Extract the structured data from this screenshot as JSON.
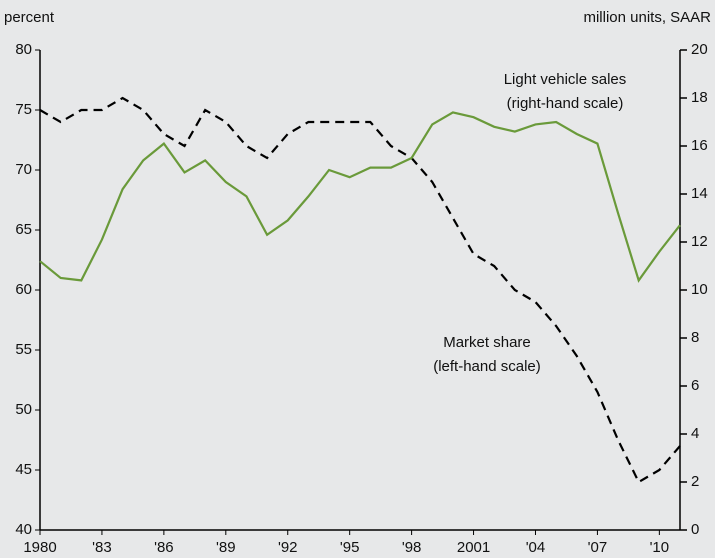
{
  "chart_data": {
    "type": "line",
    "y_label": "percent",
    "y2_label": "million units, SAAR",
    "x": [
      1980,
      1981,
      1982,
      1983,
      1984,
      1985,
      1986,
      1987,
      1988,
      1989,
      1990,
      1991,
      1992,
      1993,
      1994,
      1995,
      1996,
      1997,
      1998,
      1999,
      2000,
      2001,
      2002,
      2003,
      2004,
      2005,
      2006,
      2007,
      2008,
      2009,
      2010,
      2011
    ],
    "series": [
      {
        "name": "Market share",
        "color": "#000000",
        "dashed": true,
        "values": [
          75,
          74,
          75,
          75,
          76,
          75,
          73,
          72,
          75,
          74,
          72,
          71,
          73,
          74,
          74,
          74,
          74,
          72,
          71,
          69,
          66,
          63,
          62,
          60,
          59,
          57,
          54.5,
          51.5,
          47.5,
          44,
          45,
          47
        ]
      },
      {
        "name": "Light vehicle sales",
        "color": "#6a9a3a",
        "axis": "y2",
        "values": [
          11.2,
          10.5,
          10.4,
          12.1,
          14.2,
          15.4,
          16.1,
          14.9,
          15.4,
          14.5,
          13.9,
          12.3,
          12.9,
          13.9,
          15.0,
          14.7,
          15.1,
          15.1,
          15.5,
          16.9,
          17.4,
          17.2,
          16.8,
          16.6,
          16.9,
          17.0,
          16.5,
          16.1,
          13.2,
          10.4,
          11.6,
          12.7
        ]
      }
    ],
    "annotations": [
      {
        "series": 1,
        "lines": [
          "Light vehicle sales",
          "(right-hand scale)"
        ]
      },
      {
        "series": 0,
        "lines": [
          "Market share",
          "(left-hand scale)"
        ]
      }
    ],
    "xlim": [
      1980,
      2011
    ],
    "xticks": [
      {
        "value": 1980,
        "label": "1980"
      },
      {
        "value": 1983,
        "label": "'83"
      },
      {
        "value": 1986,
        "label": "'86"
      },
      {
        "value": 1989,
        "label": "'89"
      },
      {
        "value": 1992,
        "label": "'92"
      },
      {
        "value": 1995,
        "label": "'95"
      },
      {
        "value": 1998,
        "label": "'98"
      },
      {
        "value": 2001,
        "label": "2001"
      },
      {
        "value": 2004,
        "label": "'04"
      },
      {
        "value": 2007,
        "label": "'07"
      },
      {
        "value": 2010,
        "label": "'10"
      }
    ],
    "ylim": [
      40,
      80
    ],
    "yticks": [
      40,
      45,
      50,
      55,
      60,
      65,
      70,
      75,
      80
    ],
    "y2lim": [
      0,
      20
    ],
    "y2ticks": [
      0,
      2,
      4,
      6,
      8,
      10,
      12,
      14,
      16,
      18,
      20
    ]
  }
}
